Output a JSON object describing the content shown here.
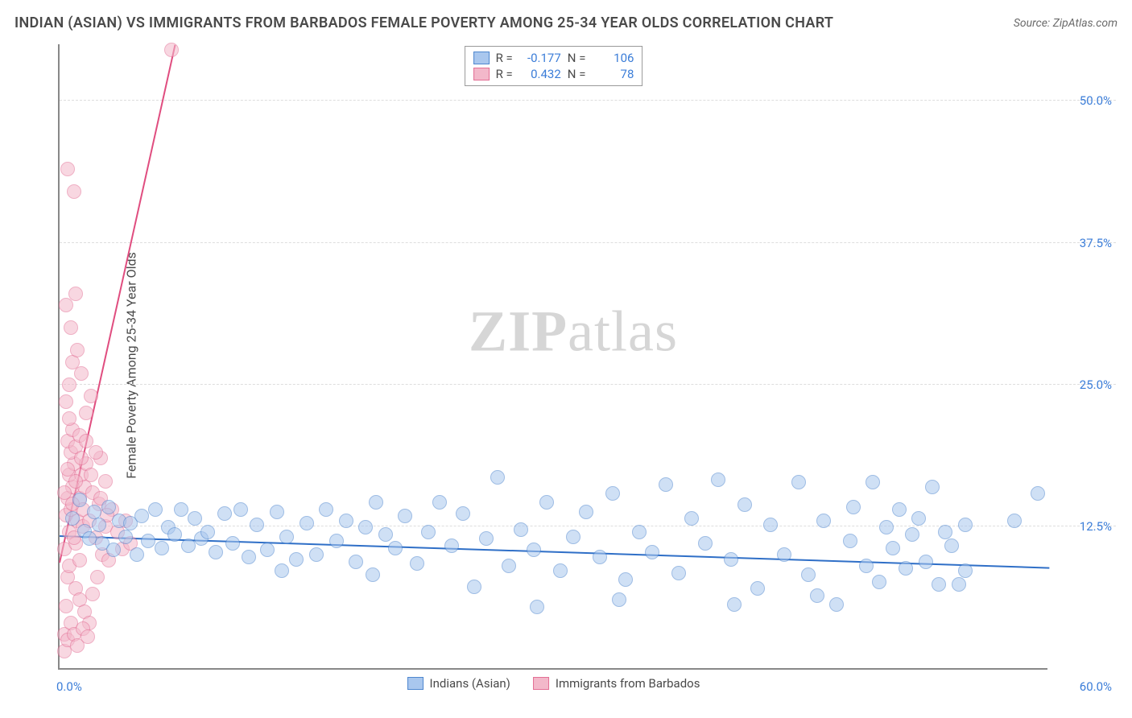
{
  "title": "INDIAN (ASIAN) VS IMMIGRANTS FROM BARBADOS FEMALE POVERTY AMONG 25-34 YEAR OLDS CORRELATION CHART",
  "source": "Source: ZipAtlas.com",
  "watermark_a": "ZIP",
  "watermark_b": "atlas",
  "y_axis_label": "Female Poverty Among 25-34 Year Olds",
  "chart": {
    "type": "scatter",
    "xlim": [
      0,
      60
    ],
    "ylim": [
      0,
      55
    ],
    "x_ticks": [
      {
        "pos": 0,
        "label": "0.0%"
      },
      {
        "pos": 60,
        "label": "60.0%"
      }
    ],
    "y_ticks": [
      {
        "pos": 12.5,
        "label": "12.5%"
      },
      {
        "pos": 25.0,
        "label": "25.0%"
      },
      {
        "pos": 37.5,
        "label": "37.5%"
      },
      {
        "pos": 50.0,
        "label": "50.0%"
      }
    ],
    "background_color": "#ffffff",
    "grid_color": "#dddddd",
    "axis_color": "#888888",
    "tick_label_color": "#3b7dd8",
    "series": [
      {
        "name": "Indians (Asian)",
        "fill": "#a9c7ee",
        "stroke": "#4f87cf",
        "fill_opacity": 0.55,
        "marker_radius": 9,
        "R_label": "R =",
        "R": "-0.177",
        "N_label": "N =",
        "N": "106",
        "trend": {
          "x1": 0,
          "y1": 11.8,
          "x2": 60,
          "y2": 9.0,
          "color": "#2f6fc7",
          "width": 2
        },
        "points": [
          [
            0.8,
            13.2
          ],
          [
            1.2,
            14.8
          ],
          [
            1.5,
            12.1
          ],
          [
            1.8,
            11.4
          ],
          [
            2.1,
            13.8
          ],
          [
            2.4,
            12.6
          ],
          [
            2.6,
            11.0
          ],
          [
            3.0,
            14.2
          ],
          [
            3.3,
            10.4
          ],
          [
            3.6,
            13.0
          ],
          [
            4.0,
            11.6
          ],
          [
            4.3,
            12.8
          ],
          [
            4.7,
            10.0
          ],
          [
            5.0,
            13.4
          ],
          [
            5.4,
            11.2
          ],
          [
            5.8,
            14.0
          ],
          [
            6.2,
            10.6
          ],
          [
            6.6,
            12.4
          ],
          [
            7.0,
            11.8
          ],
          [
            7.4,
            14.0
          ],
          [
            7.8,
            10.8
          ],
          [
            8.2,
            13.2
          ],
          [
            8.6,
            11.4
          ],
          [
            9.0,
            12.0
          ],
          [
            9.5,
            10.2
          ],
          [
            10.0,
            13.6
          ],
          [
            10.5,
            11.0
          ],
          [
            11.0,
            14.0
          ],
          [
            11.5,
            9.8
          ],
          [
            12.0,
            12.6
          ],
          [
            12.6,
            10.4
          ],
          [
            13.2,
            13.8
          ],
          [
            13.8,
            11.6
          ],
          [
            14.4,
            9.6
          ],
          [
            15.0,
            12.8
          ],
          [
            15.6,
            10.0
          ],
          [
            16.2,
            14.0
          ],
          [
            16.8,
            11.2
          ],
          [
            17.4,
            13.0
          ],
          [
            18.0,
            9.4
          ],
          [
            18.6,
            12.4
          ],
          [
            19.2,
            14.6
          ],
          [
            19.8,
            11.8
          ],
          [
            20.4,
            10.6
          ],
          [
            21.0,
            13.4
          ],
          [
            21.7,
            9.2
          ],
          [
            22.4,
            12.0
          ],
          [
            23.1,
            14.6
          ],
          [
            23.8,
            10.8
          ],
          [
            24.5,
            13.6
          ],
          [
            25.2,
            7.2
          ],
          [
            25.9,
            11.4
          ],
          [
            26.6,
            16.8
          ],
          [
            27.3,
            9.0
          ],
          [
            28.0,
            12.2
          ],
          [
            28.8,
            10.4
          ],
          [
            29.6,
            14.6
          ],
          [
            30.4,
            8.6
          ],
          [
            31.2,
            11.6
          ],
          [
            32.0,
            13.8
          ],
          [
            32.8,
            9.8
          ],
          [
            33.6,
            15.4
          ],
          [
            34.4,
            7.8
          ],
          [
            35.2,
            12.0
          ],
          [
            36.0,
            10.2
          ],
          [
            36.8,
            16.2
          ],
          [
            37.6,
            8.4
          ],
          [
            38.4,
            13.2
          ],
          [
            39.2,
            11.0
          ],
          [
            40.0,
            16.6
          ],
          [
            40.8,
            9.6
          ],
          [
            41.6,
            14.4
          ],
          [
            42.4,
            7.0
          ],
          [
            43.2,
            12.6
          ],
          [
            44.0,
            10.0
          ],
          [
            44.9,
            16.4
          ],
          [
            45.5,
            8.2
          ],
          [
            46.4,
            13.0
          ],
          [
            47.2,
            5.6
          ],
          [
            48.0,
            11.2
          ],
          [
            48.2,
            14.2
          ],
          [
            49.0,
            9.0
          ],
          [
            49.4,
            16.4
          ],
          [
            49.8,
            7.6
          ],
          [
            50.2,
            12.4
          ],
          [
            50.6,
            10.6
          ],
          [
            51.0,
            14.0
          ],
          [
            51.4,
            8.8
          ],
          [
            51.8,
            11.8
          ],
          [
            52.2,
            13.2
          ],
          [
            52.6,
            9.4
          ],
          [
            53.0,
            16.0
          ],
          [
            53.4,
            7.4
          ],
          [
            53.8,
            12.0
          ],
          [
            54.2,
            10.8
          ],
          [
            54.6,
            7.4
          ],
          [
            55.0,
            8.6
          ],
          [
            58.0,
            13.0
          ],
          [
            59.4,
            15.4
          ],
          [
            55.0,
            12.6
          ],
          [
            29.0,
            5.4
          ],
          [
            34.0,
            6.0
          ],
          [
            41.0,
            5.6
          ],
          [
            46.0,
            6.4
          ],
          [
            19.0,
            8.2
          ],
          [
            13.5,
            8.6
          ]
        ]
      },
      {
        "name": "Immigrants from Barbados",
        "fill": "#f3b8ca",
        "stroke": "#e36f95",
        "fill_opacity": 0.55,
        "marker_radius": 9,
        "R_label": "R =",
        "R": "0.432",
        "N_label": "N =",
        "N": "78",
        "trend": {
          "x1": 0,
          "y1": 9.5,
          "x2": 7.0,
          "y2": 55.0,
          "color": "#e04d7f",
          "width": 2
        },
        "points": [
          [
            0.3,
            3.0
          ],
          [
            0.4,
            5.5
          ],
          [
            0.5,
            8.0
          ],
          [
            0.3,
            10.5
          ],
          [
            0.6,
            12.0
          ],
          [
            0.4,
            13.5
          ],
          [
            0.7,
            14.0
          ],
          [
            0.5,
            15.0
          ],
          [
            0.8,
            16.0
          ],
          [
            0.6,
            17.0
          ],
          [
            0.9,
            18.0
          ],
          [
            0.7,
            19.0
          ],
          [
            0.5,
            20.0
          ],
          [
            0.8,
            21.0
          ],
          [
            0.6,
            22.0
          ],
          [
            1.0,
            11.0
          ],
          [
            1.1,
            13.0
          ],
          [
            1.2,
            15.0
          ],
          [
            1.3,
            17.0
          ],
          [
            1.4,
            14.0
          ],
          [
            1.5,
            16.0
          ],
          [
            1.6,
            18.0
          ],
          [
            1.0,
            19.5
          ],
          [
            1.2,
            20.5
          ],
          [
            1.4,
            12.5
          ],
          [
            0.4,
            23.5
          ],
          [
            0.6,
            25.0
          ],
          [
            0.8,
            27.0
          ],
          [
            0.5,
            44.0
          ],
          [
            0.9,
            42.0
          ],
          [
            1.8,
            13.0
          ],
          [
            2.0,
            15.5
          ],
          [
            2.2,
            11.5
          ],
          [
            2.4,
            14.5
          ],
          [
            2.6,
            10.0
          ],
          [
            2.8,
            12.5
          ],
          [
            3.0,
            9.5
          ],
          [
            1.0,
            7.0
          ],
          [
            1.2,
            6.0
          ],
          [
            1.5,
            5.0
          ],
          [
            1.8,
            4.0
          ],
          [
            2.0,
            6.5
          ],
          [
            2.3,
            8.0
          ],
          [
            0.3,
            1.5
          ],
          [
            0.5,
            2.5
          ],
          [
            0.7,
            4.0
          ],
          [
            0.9,
            3.0
          ],
          [
            1.1,
            2.0
          ],
          [
            1.4,
            3.5
          ],
          [
            1.7,
            2.8
          ],
          [
            0.4,
            32.0
          ],
          [
            1.0,
            33.0
          ],
          [
            1.3,
            26.0
          ],
          [
            1.6,
            22.5
          ],
          [
            1.9,
            24.0
          ],
          [
            1.1,
            28.0
          ],
          [
            0.7,
            30.0
          ],
          [
            2.5,
            18.5
          ],
          [
            2.8,
            16.5
          ],
          [
            3.2,
            14.0
          ],
          [
            3.5,
            12.0
          ],
          [
            3.8,
            10.5
          ],
          [
            4.0,
            13.0
          ],
          [
            4.3,
            11.0
          ],
          [
            0.3,
            15.5
          ],
          [
            0.5,
            17.5
          ],
          [
            0.8,
            14.5
          ],
          [
            1.0,
            16.5
          ],
          [
            1.3,
            18.5
          ],
          [
            1.6,
            20.0
          ],
          [
            1.9,
            17.0
          ],
          [
            2.2,
            19.0
          ],
          [
            2.5,
            15.0
          ],
          [
            2.9,
            13.5
          ],
          [
            6.8,
            54.5
          ],
          [
            0.6,
            9.0
          ],
          [
            0.9,
            11.5
          ],
          [
            1.2,
            9.5
          ]
        ]
      }
    ]
  }
}
